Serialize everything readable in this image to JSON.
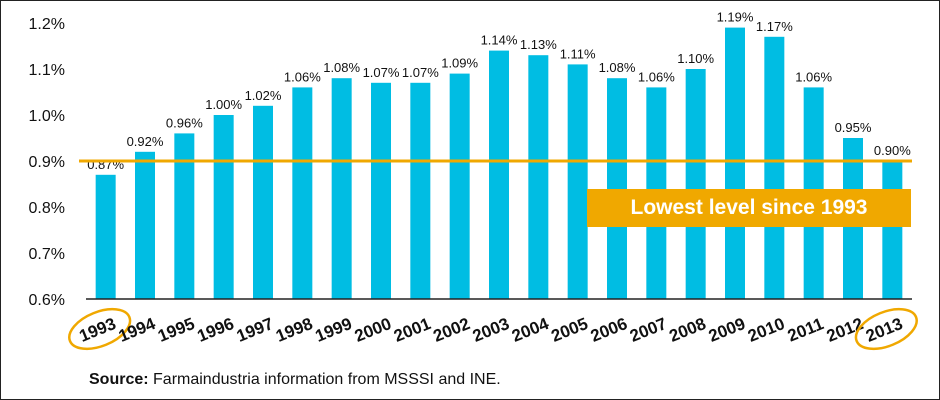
{
  "chart_data": {
    "type": "bar",
    "categories": [
      "1993",
      "1994",
      "1995",
      "1996",
      "1997",
      "1998",
      "1999",
      "2000",
      "2001",
      "2002",
      "2003",
      "2004",
      "2005",
      "2006",
      "2007",
      "2008",
      "2009",
      "2010",
      "2011",
      "2012",
      "2013"
    ],
    "values": [
      0.87,
      0.92,
      0.96,
      1.0,
      1.02,
      1.06,
      1.08,
      1.07,
      1.07,
      1.09,
      1.14,
      1.13,
      1.11,
      1.08,
      1.06,
      1.1,
      1.19,
      1.17,
      1.06,
      0.95,
      0.9
    ],
    "data_labels": [
      "0.87%",
      "0.92%",
      "0.96%",
      "1.00%",
      "1.02%",
      "1.06%",
      "1.08%",
      "1.07%",
      "1.07%",
      "1.09%",
      "1.14%",
      "1.13%",
      "1.11%",
      "1.08%",
      "1.06%",
      "1.10%",
      "1.19%",
      "1.17%",
      "1.06%",
      "0.95%",
      "0.90%"
    ],
    "y_ticks": [
      0.6,
      0.7,
      0.8,
      0.9,
      1.0,
      1.1,
      1.2
    ],
    "y_tick_labels": [
      "0.6%",
      "0.7%",
      "0.8%",
      "0.9%",
      "1.0%",
      "1.1%",
      "1.2%"
    ],
    "ylim": [
      0.6,
      1.2
    ],
    "reference_line": 0.9,
    "highlighted_categories": [
      "1993",
      "2013"
    ],
    "annotation": "Lowest level since 1993",
    "grid": false,
    "colors": {
      "bar": "#00bde3",
      "highlight": "#f0a800",
      "text": "#111111"
    }
  },
  "source": {
    "label": "Source:",
    "text": " Farmaindustria information from MSSSI and INE."
  }
}
